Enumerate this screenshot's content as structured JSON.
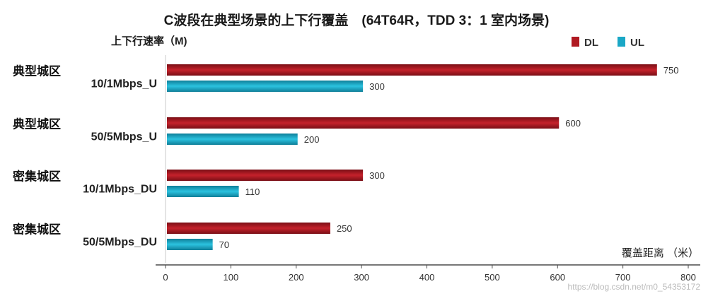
{
  "chart_data": {
    "type": "bar",
    "orientation": "horizontal",
    "title": "C波段在典型场景的上下行覆盖　(64T64R，TDD 3：1 室内场景)",
    "ylabel": "上下行速率（M)",
    "xlabel": "覆盖距离 （米）",
    "categories": [
      {
        "scene": "典型城区",
        "rate": "10/1Mbps_U"
      },
      {
        "scene": "典型城区",
        "rate": "50/5Mbps_U"
      },
      {
        "scene": "密集城区",
        "rate": "10/1Mbps_DU"
      },
      {
        "scene": "密集城区",
        "rate": "50/5Mbps_DU"
      }
    ],
    "series": [
      {
        "name": "DL",
        "values": [
          750,
          600,
          300,
          250
        ],
        "color": "#b01a22"
      },
      {
        "name": "UL",
        "values": [
          300,
          200,
          110,
          70
        ],
        "color": "#1aa7c6"
      }
    ],
    "xlim": [
      0,
      800
    ],
    "xticks": [
      "0",
      "100",
      "200",
      "300",
      "400",
      "500",
      "600",
      "700",
      "800"
    ],
    "legend_position": "top-right",
    "grid": false
  },
  "watermark": "https://blog.csdn.net/m0_54353172"
}
